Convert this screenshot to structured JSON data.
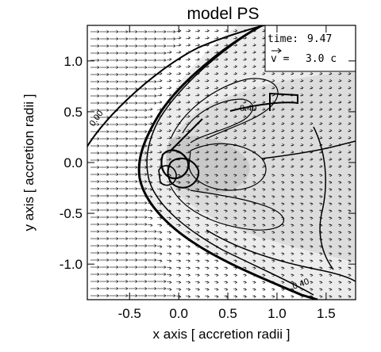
{
  "chart_data": {
    "type": "contour",
    "title": "model PS",
    "xlabel": "x axis [ accretion radii ]",
    "ylabel": "y axis [ accretion radii ]",
    "xlim": [
      -0.93,
      1.8
    ],
    "ylim": [
      -1.35,
      1.35
    ],
    "xticks": [
      "-0.5",
      "0.0",
      "0.5",
      "1.0",
      "1.5"
    ],
    "yticks": [
      "-1.0",
      "-0.5",
      "0.0",
      "0.5",
      "1.0"
    ],
    "legend": {
      "time_label": "time:",
      "time_value": "9.47",
      "velocity_label": "v =",
      "velocity_value": "3.0 c"
    },
    "contour_labels": [
      "0.00",
      "0.40",
      "0.40"
    ],
    "velocity_field": {
      "direction": "left-to-right",
      "reference_speed": "3.0 c"
    },
    "background_color": "#ffffff",
    "fill_color": "#e8e8e8",
    "dark_fill_color": "#c8c8c8",
    "line_color": "#000000"
  }
}
